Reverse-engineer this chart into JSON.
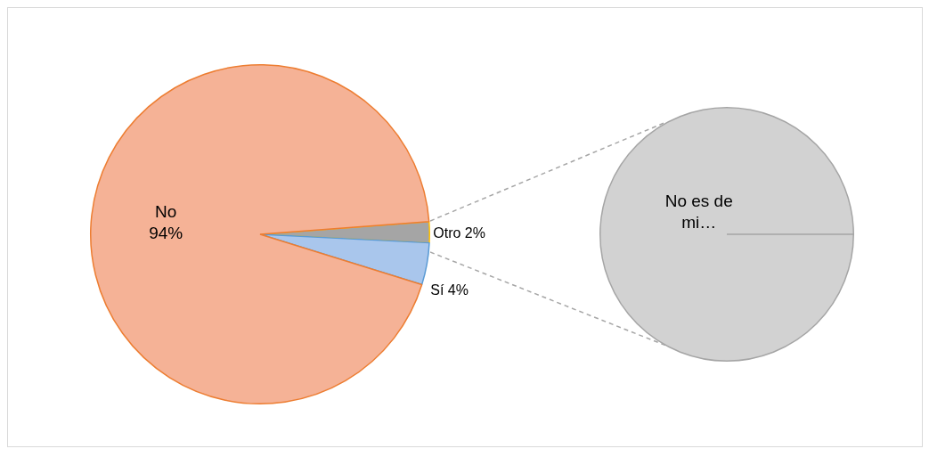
{
  "chart_data": [
    {
      "type": "pie",
      "categories": [
        "Otro",
        "Sí",
        "No"
      ],
      "values": [
        2,
        4,
        94
      ],
      "colors": [
        "#a5a5a5",
        "#a9c6ec",
        "#f5b296"
      ],
      "value_labels": [
        "2%",
        "4%",
        "94%"
      ]
    },
    {
      "type": "pie",
      "categories": [
        "No es de mi…"
      ],
      "values": [
        100
      ],
      "colors": [
        "#d2d2d2"
      ]
    }
  ]
}
